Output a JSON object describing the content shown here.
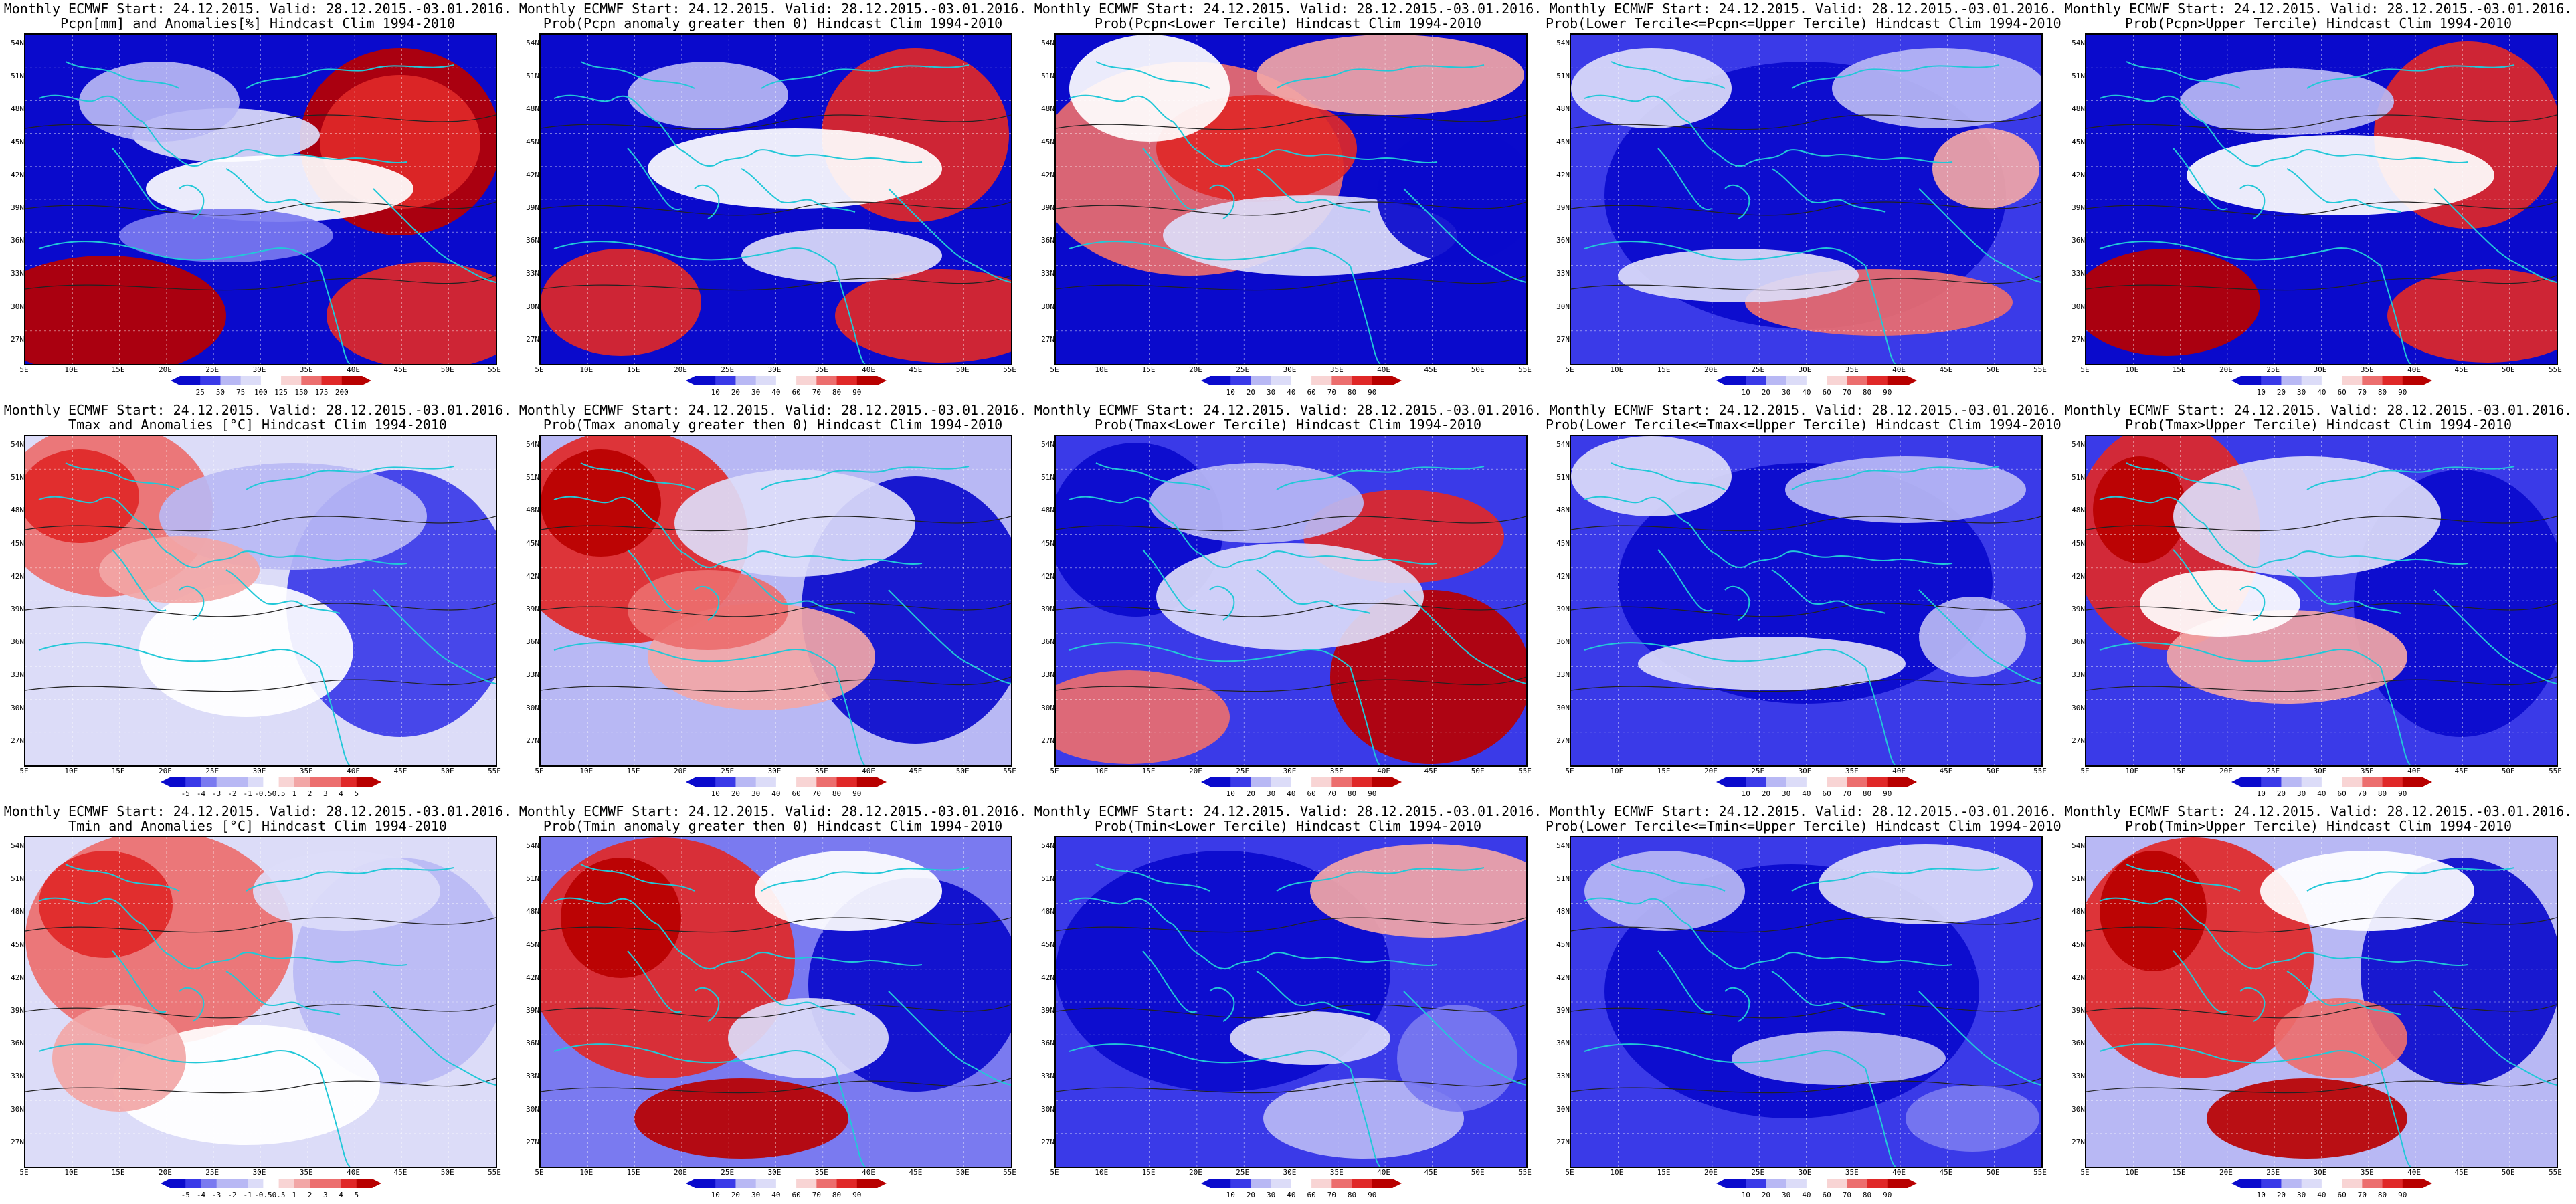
{
  "latitude_labels": [
    "54N",
    "51N",
    "48N",
    "45N",
    "42N",
    "39N",
    "36N",
    "33N",
    "30N",
    "27N"
  ],
  "longitude_labels": [
    "5E",
    "10E",
    "15E",
    "20E",
    "25E",
    "30E",
    "35E",
    "40E",
    "45E",
    "50E",
    "55E"
  ],
  "colors": {
    "deep_blue": "#0a0acc",
    "blue": "#3a3ae8",
    "mid_blue": "#7a7af0",
    "light_blue": "#b8b8f4",
    "pale_blue": "#dcdcf8",
    "white": "#ffffff",
    "pale_red": "#f8d4d4",
    "light_red": "#f2a6a6",
    "mid_red": "#ec6e6e",
    "red": "#e02828",
    "deep_red": "#b80000",
    "coast": "#22c8d8",
    "contour": "#222222"
  },
  "panels": [
    {
      "title1": "Monthly ECMWF Start: 24.12.2015. Valid: 28.12.2015.-03.01.2016.",
      "title2": "Pcpn[mm] and Anomalies[%] Hindcast Clim 1994-2010",
      "colorbar": [
        "25",
        "50",
        "75",
        "100",
        "125",
        "150",
        "175",
        "200"
      ],
      "pattern": "pcpn_anom"
    },
    {
      "title1": "Monthly ECMWF Start: 24.12.2015. Valid: 28.12.2015.-03.01.2016.",
      "title2": "Prob(Pcpn anomaly greater then 0) Hindcast Clim 1994-2010",
      "colorbar": [
        "10",
        "20",
        "30",
        "40",
        "60",
        "70",
        "80",
        "90"
      ],
      "pattern": "pcpn_pos"
    },
    {
      "title1": "Monthly ECMWF Start: 24.12.2015. Valid: 28.12.2015.-03.01.2016.",
      "title2": "Prob(Pcpn<Lower Tercile) Hindcast Clim 1994-2010",
      "colorbar": [
        "10",
        "20",
        "30",
        "40",
        "60",
        "70",
        "80",
        "90"
      ],
      "pattern": "pcpn_low"
    },
    {
      "title1": "Monthly ECMWF Start: 24.12.2015. Valid: 28.12.2015.-03.01.2016.",
      "title2": "Prob(Lower Tercile<=Pcpn<=Upper Tercile) Hindcast Clim 1994-2010",
      "colorbar": [
        "10",
        "20",
        "30",
        "40",
        "60",
        "70",
        "80",
        "90"
      ],
      "pattern": "pcpn_mid"
    },
    {
      "title1": "Monthly ECMWF Start: 24.12.2015. Valid: 28.12.2015.-03.01.2016.",
      "title2": "Prob(Pcpn>Upper Tercile) Hindcast Clim 1994-2010",
      "colorbar": [
        "10",
        "20",
        "30",
        "40",
        "60",
        "70",
        "80",
        "90"
      ],
      "pattern": "pcpn_up"
    },
    {
      "title1": "Monthly ECMWF Start: 24.12.2015. Valid: 28.12.2015.-03.01.2016.",
      "title2": "Tmax and Anomalies [°C] Hindcast Clim 1994-2010",
      "colorbar": [
        "-5",
        "-4",
        "-3",
        "-2",
        "-1",
        "-0.5",
        "0.5",
        "1",
        "2",
        "3",
        "4",
        "5"
      ],
      "pattern": "tmax_anom"
    },
    {
      "title1": "Monthly ECMWF Start: 24.12.2015. Valid: 28.12.2015.-03.01.2016.",
      "title2": "Prob(Tmax anomaly greater then 0) Hindcast Clim 1994-2010",
      "colorbar": [
        "10",
        "20",
        "30",
        "40",
        "60",
        "70",
        "80",
        "90"
      ],
      "pattern": "tmax_pos"
    },
    {
      "title1": "Monthly ECMWF Start: 24.12.2015. Valid: 28.12.2015.-03.01.2016.",
      "title2": "Prob(Tmax<Lower Tercile) Hindcast Clim 1994-2010",
      "colorbar": [
        "10",
        "20",
        "30",
        "40",
        "60",
        "70",
        "80",
        "90"
      ],
      "pattern": "tmax_low"
    },
    {
      "title1": "Monthly ECMWF Start: 24.12.2015. Valid: 28.12.2015.-03.01.2016.",
      "title2": "Prob(Lower Tercile<=Tmax<=Upper Tercile) Hindcast Clim 1994-2010",
      "colorbar": [
        "10",
        "20",
        "30",
        "40",
        "60",
        "70",
        "80",
        "90"
      ],
      "pattern": "tmax_mid"
    },
    {
      "title1": "Monthly ECMWF Start: 24.12.2015. Valid: 28.12.2015.-03.01.2016.",
      "title2": "Prob(Tmax>Upper Tercile) Hindcast Clim 1994-2010",
      "colorbar": [
        "10",
        "20",
        "30",
        "40",
        "60",
        "70",
        "80",
        "90"
      ],
      "pattern": "tmax_up"
    },
    {
      "title1": "Monthly ECMWF Start: 24.12.2015. Valid: 28.12.2015.-03.01.2016.",
      "title2": "Tmin and Anomalies [°C] Hindcast Clim 1994-2010",
      "colorbar": [
        "-5",
        "-4",
        "-3",
        "-2",
        "-1",
        "-0.5",
        "0.5",
        "1",
        "2",
        "3",
        "4",
        "5"
      ],
      "pattern": "tmin_anom"
    },
    {
      "title1": "Monthly ECMWF Start: 24.12.2015. Valid: 28.12.2015.-03.01.2016.",
      "title2": "Prob(Tmin anomaly greater then 0) Hindcast Clim 1994-2010",
      "colorbar": [
        "10",
        "20",
        "30",
        "40",
        "60",
        "70",
        "80",
        "90"
      ],
      "pattern": "tmin_pos"
    },
    {
      "title1": "Monthly ECMWF Start: 24.12.2015. Valid: 28.12.2015.-03.01.2016.",
      "title2": "Prob(Tmin<Lower Tercile) Hindcast Clim 1994-2010",
      "colorbar": [
        "10",
        "20",
        "30",
        "40",
        "60",
        "70",
        "80",
        "90"
      ],
      "pattern": "tmin_low"
    },
    {
      "title1": "Monthly ECMWF Start: 24.12.2015. Valid: 28.12.2015.-03.01.2016.",
      "title2": "Prob(Lower Tercile<=Tmin<=Upper Tercile) Hindcast Clim 1994-2010",
      "colorbar": [
        "10",
        "20",
        "30",
        "40",
        "60",
        "70",
        "80",
        "90"
      ],
      "pattern": "tmin_mid"
    },
    {
      "title1": "Monthly ECMWF Start: 24.12.2015. Valid: 28.12.2015.-03.01.2016.",
      "title2": "Prob(Tmin>Upper Tercile) Hindcast Clim 1994-2010",
      "colorbar": [
        "10",
        "20",
        "30",
        "40",
        "60",
        "70",
        "80",
        "90"
      ],
      "pattern": "tmin_up"
    }
  ]
}
